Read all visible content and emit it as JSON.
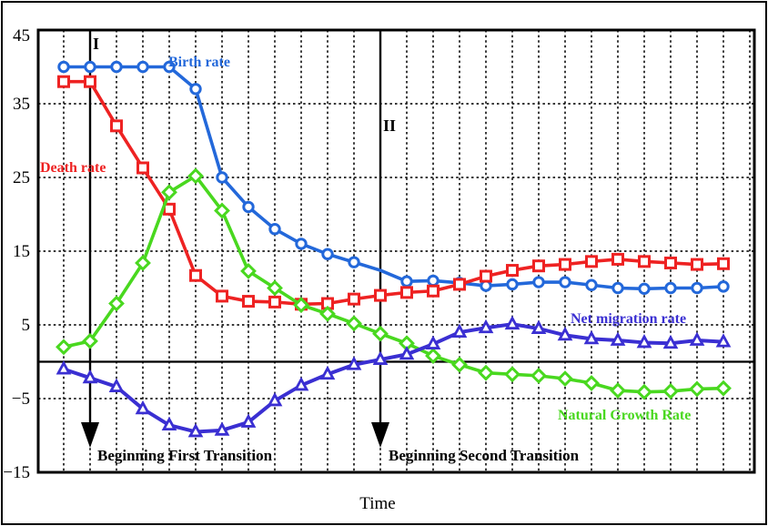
{
  "chart_data": {
    "type": "line",
    "title": "",
    "xlabel": "Time",
    "ylabel": "",
    "ylim": [
      -15,
      45
    ],
    "yticks": [
      45,
      35,
      25,
      15,
      5,
      -5,
      -15
    ],
    "x_axis": {
      "tick_labels": "none",
      "steps": 26
    },
    "grid": {
      "vertical": "dashed line at every time step",
      "horizontal": "dashed every 10 units, solid black at 0"
    },
    "legend_position": "inline labels beside curves",
    "series": [
      {
        "name": "Birth rate",
        "color": "#2368da",
        "marker": "circle",
        "skip_marker_at": [
          12
        ],
        "values": [
          40,
          40,
          40,
          40,
          40,
          37,
          25,
          21,
          18,
          16,
          14.6,
          13.5,
          12.4,
          10.9,
          11,
          10.7,
          10.3,
          10.5,
          10.8,
          10.8,
          10.4,
          10,
          9.9,
          10,
          10,
          10.2
        ]
      },
      {
        "name": "Death rate",
        "color": "#ee2222",
        "marker": "square",
        "skip_marker_at": [],
        "values": [
          38,
          38,
          32,
          26.3,
          20.7,
          11.7,
          8.9,
          8.2,
          8.1,
          7.8,
          7.9,
          8.5,
          9,
          9.4,
          9.6,
          10.5,
          11.6,
          12.4,
          13,
          13.2,
          13.6,
          13.9,
          13.6,
          13.4,
          13.2,
          13.3
        ]
      },
      {
        "name": "Natural Growth Rate",
        "color": "#49d81f",
        "marker": "diamond",
        "skip_marker_at": [],
        "values": [
          2,
          2.8,
          7.9,
          13.4,
          23,
          25.2,
          20.5,
          12.3,
          10,
          7.7,
          6.5,
          5.2,
          3.8,
          2.5,
          0.8,
          -0.4,
          -1.5,
          -1.7,
          -1.9,
          -2.3,
          -2.9,
          -3.9,
          -4.1,
          -4,
          -3.7,
          -3.6
        ]
      },
      {
        "name": "Net migration rate",
        "color": "#3a2fd2",
        "marker": "triangle",
        "skip_marker_at": [],
        "values": [
          -1,
          -2.2,
          -3.4,
          -6.4,
          -8.6,
          -9.5,
          -9.3,
          -8.2,
          -5.3,
          -3.2,
          -1.7,
          -0.4,
          0.3,
          1,
          2.4,
          4,
          4.6,
          5.1,
          4.5,
          3.6,
          3.1,
          2.9,
          2.6,
          2.5,
          2.9,
          2.7
        ]
      }
    ],
    "transition_lines": [
      {
        "label": "I",
        "caption": "Beginning First Transition",
        "x_step": 2
      },
      {
        "label": "II",
        "caption": "Beginning Second Transition",
        "x_step": 13
      }
    ]
  }
}
